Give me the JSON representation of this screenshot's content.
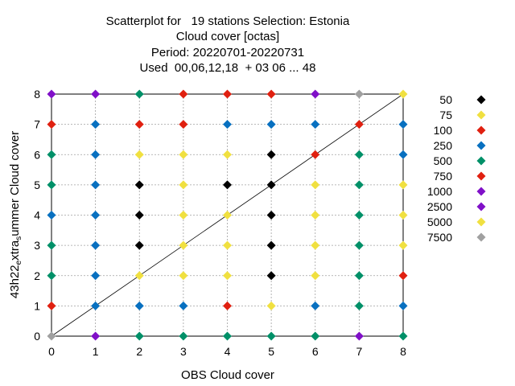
{
  "chart_data": {
    "type": "scatter",
    "title_lines": [
      "Scatterplot for   19 stations Selection: Estonia",
      "Cloud cover [octas]",
      "Period: 20220701-20220731",
      "Used  00,06,12,18  + 03 06 ... 48"
    ],
    "xlabel": "OBS Cloud cover",
    "ylabel_main": "43h22",
    "ylabel_sub1": "e",
    "ylabel_mid": "xtra",
    "ylabel_sub2": "s",
    "ylabel_end": "ummer Cloud cover",
    "xlim": [
      0,
      8
    ],
    "ylim": [
      0,
      8
    ],
    "xticks": [
      "0",
      "1",
      "2",
      "3",
      "4",
      "5",
      "6",
      "7",
      "8"
    ],
    "yticks": [
      "0",
      "1",
      "2",
      "3",
      "4",
      "5",
      "6",
      "7",
      "8"
    ],
    "grid": true,
    "diagonal_line": true,
    "legend_placement": "right",
    "legend": [
      {
        "label": "50",
        "color": "#000000"
      },
      {
        "label": "75",
        "color": "#f0e040"
      },
      {
        "label": "100",
        "color": "#e02010"
      },
      {
        "label": "250",
        "color": "#0870c0"
      },
      {
        "label": "500",
        "color": "#009068"
      },
      {
        "label": "750",
        "color": "#e02010"
      },
      {
        "label": "1000",
        "color": "#8010c8"
      },
      {
        "label": "2500",
        "color": "#8010c8"
      },
      {
        "label": "5000",
        "color": "#f0e040"
      },
      {
        "label": "7500",
        "color": "#a0a0a0"
      }
    ],
    "points": [
      {
        "x": 0,
        "y": 8,
        "color": "#8010c8"
      },
      {
        "x": 1,
        "y": 8,
        "color": "#8010c8"
      },
      {
        "x": 2,
        "y": 8,
        "color": "#009068"
      },
      {
        "x": 3,
        "y": 8,
        "color": "#e02010"
      },
      {
        "x": 4,
        "y": 8,
        "color": "#e02010"
      },
      {
        "x": 5,
        "y": 8,
        "color": "#e02010"
      },
      {
        "x": 6,
        "y": 8,
        "color": "#8010c8"
      },
      {
        "x": 7,
        "y": 8,
        "color": "#a0a0a0"
      },
      {
        "x": 8,
        "y": 8,
        "color": "#f0e040"
      },
      {
        "x": 0,
        "y": 7,
        "color": "#e02010"
      },
      {
        "x": 1,
        "y": 7,
        "color": "#0870c0"
      },
      {
        "x": 2,
        "y": 7,
        "color": "#e02010"
      },
      {
        "x": 3,
        "y": 7,
        "color": "#e02010"
      },
      {
        "x": 4,
        "y": 7,
        "color": "#0870c0"
      },
      {
        "x": 5,
        "y": 7,
        "color": "#0870c0"
      },
      {
        "x": 6,
        "y": 7,
        "color": "#0870c0"
      },
      {
        "x": 7,
        "y": 7,
        "color": "#e02010"
      },
      {
        "x": 8,
        "y": 7,
        "color": "#0870c0"
      },
      {
        "x": 0,
        "y": 6,
        "color": "#009068"
      },
      {
        "x": 1,
        "y": 6,
        "color": "#0870c0"
      },
      {
        "x": 2,
        "y": 6,
        "color": "#f0e040"
      },
      {
        "x": 3,
        "y": 6,
        "color": "#f0e040"
      },
      {
        "x": 4,
        "y": 6,
        "color": "#f0e040"
      },
      {
        "x": 5,
        "y": 6,
        "color": "#000000"
      },
      {
        "x": 6,
        "y": 6,
        "color": "#e02010"
      },
      {
        "x": 7,
        "y": 6,
        "color": "#009068"
      },
      {
        "x": 8,
        "y": 6,
        "color": "#0870c0"
      },
      {
        "x": 0,
        "y": 5,
        "color": "#009068"
      },
      {
        "x": 1,
        "y": 5,
        "color": "#0870c0"
      },
      {
        "x": 2,
        "y": 5,
        "color": "#000000"
      },
      {
        "x": 3,
        "y": 5,
        "color": "#f0e040"
      },
      {
        "x": 4,
        "y": 5,
        "color": "#000000"
      },
      {
        "x": 5,
        "y": 5,
        "color": "#000000"
      },
      {
        "x": 6,
        "y": 5,
        "color": "#f0e040"
      },
      {
        "x": 7,
        "y": 5,
        "color": "#009068"
      },
      {
        "x": 8,
        "y": 5,
        "color": "#f0e040"
      },
      {
        "x": 0,
        "y": 4,
        "color": "#0870c0"
      },
      {
        "x": 1,
        "y": 4,
        "color": "#0870c0"
      },
      {
        "x": 2,
        "y": 4,
        "color": "#000000"
      },
      {
        "x": 3,
        "y": 4,
        "color": "#f0e040"
      },
      {
        "x": 4,
        "y": 4,
        "color": "#f0e040"
      },
      {
        "x": 5,
        "y": 4,
        "color": "#000000"
      },
      {
        "x": 6,
        "y": 4,
        "color": "#f0e040"
      },
      {
        "x": 7,
        "y": 4,
        "color": "#009068"
      },
      {
        "x": 8,
        "y": 4,
        "color": "#f0e040"
      },
      {
        "x": 0,
        "y": 3,
        "color": "#009068"
      },
      {
        "x": 1,
        "y": 3,
        "color": "#0870c0"
      },
      {
        "x": 2,
        "y": 3,
        "color": "#000000"
      },
      {
        "x": 3,
        "y": 3,
        "color": "#f0e040"
      },
      {
        "x": 4,
        "y": 3,
        "color": "#f0e040"
      },
      {
        "x": 5,
        "y": 3,
        "color": "#000000"
      },
      {
        "x": 6,
        "y": 3,
        "color": "#f0e040"
      },
      {
        "x": 7,
        "y": 3,
        "color": "#009068"
      },
      {
        "x": 8,
        "y": 3,
        "color": "#f0e040"
      },
      {
        "x": 0,
        "y": 2,
        "color": "#009068"
      },
      {
        "x": 1,
        "y": 2,
        "color": "#0870c0"
      },
      {
        "x": 2,
        "y": 2,
        "color": "#f0e040"
      },
      {
        "x": 3,
        "y": 2,
        "color": "#f0e040"
      },
      {
        "x": 4,
        "y": 2,
        "color": "#f0e040"
      },
      {
        "x": 5,
        "y": 2,
        "color": "#000000"
      },
      {
        "x": 6,
        "y": 2,
        "color": "#f0e040"
      },
      {
        "x": 7,
        "y": 2,
        "color": "#009068"
      },
      {
        "x": 8,
        "y": 2,
        "color": "#e02010"
      },
      {
        "x": 0,
        "y": 1,
        "color": "#e02010"
      },
      {
        "x": 1,
        "y": 1,
        "color": "#0870c0"
      },
      {
        "x": 2,
        "y": 1,
        "color": "#0870c0"
      },
      {
        "x": 3,
        "y": 1,
        "color": "#0870c0"
      },
      {
        "x": 4,
        "y": 1,
        "color": "#e02010"
      },
      {
        "x": 5,
        "y": 1,
        "color": "#f0e040"
      },
      {
        "x": 6,
        "y": 1,
        "color": "#0870c0"
      },
      {
        "x": 7,
        "y": 1,
        "color": "#009068"
      },
      {
        "x": 8,
        "y": 1,
        "color": "#0870c0"
      },
      {
        "x": 0,
        "y": 0,
        "color": "#a0a0a0"
      },
      {
        "x": 1,
        "y": 0,
        "color": "#8010c8"
      },
      {
        "x": 2,
        "y": 0,
        "color": "#009068"
      },
      {
        "x": 3,
        "y": 0,
        "color": "#009068"
      },
      {
        "x": 4,
        "y": 0,
        "color": "#009068"
      },
      {
        "x": 5,
        "y": 0,
        "color": "#009068"
      },
      {
        "x": 6,
        "y": 0,
        "color": "#009068"
      },
      {
        "x": 7,
        "y": 0,
        "color": "#8010c8"
      },
      {
        "x": 8,
        "y": 0,
        "color": "#009068"
      }
    ]
  }
}
